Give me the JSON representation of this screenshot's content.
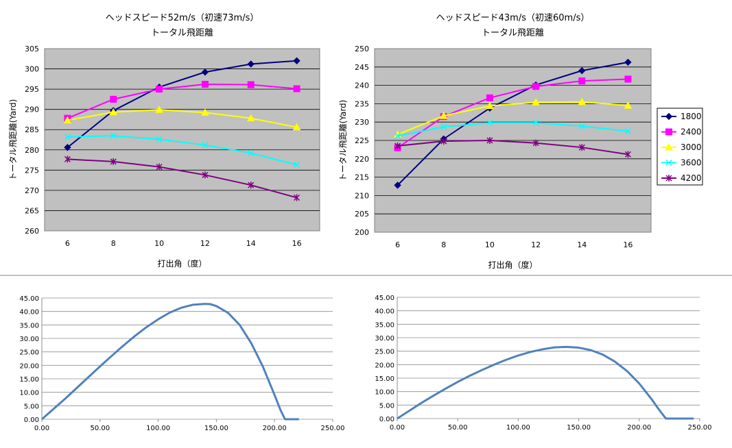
{
  "chart_data": [
    {
      "type": "line",
      "title": "ヘッドスピード52m/s（初速73m/s）",
      "subtitle": "トータル飛距離",
      "xlabel": "打出角（度）",
      "ylabel": "トータル飛距離(Yard)",
      "categories": [
        "6",
        "8",
        "10",
        "12",
        "14",
        "16"
      ],
      "ylim": [
        260,
        305
      ],
      "yticks": [
        "260",
        "265",
        "270",
        "275",
        "280",
        "285",
        "290",
        "295",
        "300",
        "305"
      ],
      "grid": true,
      "plot_bg": "#c0c0c0",
      "series": [
        {
          "name": "1800",
          "color": "#000080",
          "marker": "diamond",
          "values": [
            280.6,
            289.7,
            295.5,
            299.2,
            301.2,
            302.0
          ]
        },
        {
          "name": "2400",
          "color": "#ff00ff",
          "marker": "square",
          "values": [
            287.8,
            292.5,
            295.0,
            296.2,
            296.1,
            295.1
          ]
        },
        {
          "name": "3000",
          "color": "#ffff00",
          "marker": "triangle",
          "values": [
            287.3,
            289.3,
            289.9,
            289.2,
            287.8,
            285.6
          ]
        },
        {
          "name": "3600",
          "color": "#00ffff",
          "marker": "x",
          "values": [
            283.2,
            283.5,
            282.6,
            281.2,
            279.2,
            276.3
          ]
        },
        {
          "name": "4200",
          "color": "#800080",
          "marker": "star",
          "values": [
            277.7,
            277.1,
            275.8,
            273.8,
            271.3,
            268.2
          ]
        }
      ]
    },
    {
      "type": "line",
      "title": "ヘッドスピード43m/s（初速60m/s）",
      "subtitle": "トータル飛距離",
      "xlabel": "打出角（度）",
      "ylabel": "トータル飛距離(Yard)",
      "categories": [
        "6",
        "8",
        "10",
        "12",
        "14",
        "16"
      ],
      "ylim": [
        200,
        250
      ],
      "yticks": [
        "200",
        "205",
        "210",
        "215",
        "220",
        "225",
        "230",
        "235",
        "240",
        "245",
        "250"
      ],
      "grid": true,
      "plot_bg": "#c0c0c0",
      "legend": "right",
      "series": [
        {
          "name": "1800",
          "color": "#000080",
          "marker": "diamond",
          "values": [
            212.8,
            225.4,
            233.8,
            240.1,
            244.0,
            246.3
          ]
        },
        {
          "name": "2400",
          "color": "#ff00ff",
          "marker": "square",
          "values": [
            223.0,
            231.5,
            236.6,
            239.7,
            241.2,
            241.7
          ]
        },
        {
          "name": "3000",
          "color": "#ffff00",
          "marker": "triangle",
          "values": [
            226.6,
            231.7,
            234.4,
            235.4,
            235.5,
            234.5
          ]
        },
        {
          "name": "3600",
          "color": "#00ffff",
          "marker": "x",
          "values": [
            226.2,
            228.7,
            229.8,
            229.8,
            228.9,
            227.5
          ]
        },
        {
          "name": "4200",
          "color": "#800080",
          "marker": "star",
          "values": [
            223.5,
            224.8,
            225.0,
            224.3,
            223.1,
            221.2
          ]
        }
      ]
    },
    {
      "type": "line",
      "title": "",
      "xlim": [
        0,
        250
      ],
      "ylim": [
        0,
        45
      ],
      "xticks": [
        "0.00",
        "50.00",
        "100.00",
        "150.00",
        "200.00",
        "250.00"
      ],
      "yticks": [
        "0.00",
        "5.00",
        "10.00",
        "15.00",
        "20.00",
        "25.00",
        "30.00",
        "35.00",
        "40.00",
        "45.00"
      ],
      "grid": true,
      "color": "#4f81bd",
      "series": [
        {
          "x": [
            0,
            10,
            20,
            30,
            40,
            50,
            60,
            70,
            80,
            90,
            100,
            110,
            120,
            130,
            140,
            145,
            150,
            160,
            170,
            180,
            190,
            200,
            205,
            209,
            215,
            221
          ],
          "y": [
            0,
            3.8,
            7.6,
            11.6,
            15.6,
            19.6,
            23.5,
            27.3,
            30.9,
            34.2,
            37.1,
            39.6,
            41.4,
            42.5,
            42.8,
            42.7,
            42.0,
            39.5,
            35.0,
            28.2,
            19.5,
            9.0,
            3.5,
            0,
            0,
            0
          ]
        }
      ]
    },
    {
      "type": "line",
      "title": "",
      "xlim": [
        0,
        250
      ],
      "ylim": [
        0,
        45
      ],
      "xticks": [
        "0.00",
        "50.00",
        "100.00",
        "150.00",
        "200.00",
        "250.00"
      ],
      "yticks": [
        "0.00",
        "5.00",
        "10.00",
        "15.00",
        "20.00",
        "25.00",
        "30.00",
        "35.00",
        "40.00",
        "45.00"
      ],
      "grid": true,
      "color": "#4f81bd",
      "series": [
        {
          "x": [
            0,
            10,
            20,
            30,
            40,
            50,
            60,
            70,
            80,
            90,
            100,
            110,
            120,
            130,
            140,
            150,
            160,
            170,
            180,
            190,
            200,
            210,
            216,
            222,
            230,
            245
          ],
          "y": [
            0,
            2.9,
            5.8,
            8.5,
            11.1,
            13.6,
            15.9,
            18.0,
            20.0,
            21.8,
            23.4,
            24.7,
            25.7,
            26.4,
            26.6,
            26.3,
            25.4,
            23.7,
            21.1,
            17.6,
            13.0,
            7.3,
            3.5,
            0,
            0,
            0
          ]
        }
      ]
    }
  ]
}
